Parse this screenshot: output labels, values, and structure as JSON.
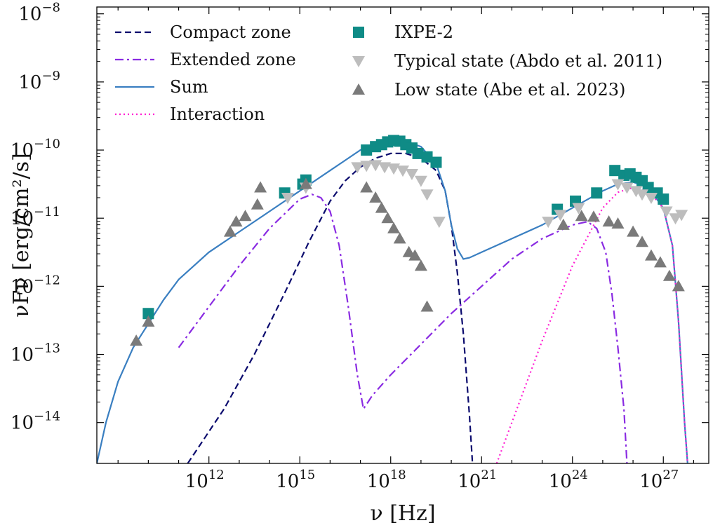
{
  "chart_data": {
    "type": "line",
    "title": "",
    "xlabel": "ν [Hz]",
    "ylabel": "νFν [erg/cm²/s]",
    "xscale": "log",
    "yscale": "log",
    "xlim_log10": [
      8.3,
      28.5
    ],
    "ylim_log10": [
      -14.6,
      -7.9
    ],
    "x_ticks": [
      {
        "exp": 12,
        "base": "10",
        "sup": "12"
      },
      {
        "exp": 15,
        "base": "10",
        "sup": "15"
      },
      {
        "exp": 18,
        "base": "10",
        "sup": "18"
      },
      {
        "exp": 21,
        "base": "10",
        "sup": "21"
      },
      {
        "exp": 24,
        "base": "10",
        "sup": "24"
      },
      {
        "exp": 27,
        "base": "10",
        "sup": "27"
      }
    ],
    "y_ticks": [
      {
        "exp": -8,
        "base": "10",
        "sup": "−8"
      },
      {
        "exp": -9,
        "base": "10",
        "sup": "−9"
      },
      {
        "exp": -10,
        "base": "10",
        "sup": "−10"
      },
      {
        "exp": -11,
        "base": "10",
        "sup": "−11"
      },
      {
        "exp": -12,
        "base": "10",
        "sup": "−12"
      },
      {
        "exp": -13,
        "base": "10",
        "sup": "−13"
      },
      {
        "exp": -14,
        "base": "10",
        "sup": "−14"
      }
    ],
    "legend_position": "top-left, two columns",
    "series": [
      {
        "name": "Compact zone",
        "kind": "line",
        "color": "#0b0b6e",
        "dash": "dashed",
        "points": [
          [
            11.3,
            -14.6
          ],
          [
            12.5,
            -13.8
          ],
          [
            13.5,
            -13.0
          ],
          [
            14.5,
            -12.1
          ],
          [
            15.3,
            -11.35
          ],
          [
            16.0,
            -10.75
          ],
          [
            16.5,
            -10.45
          ],
          [
            17.0,
            -10.25
          ],
          [
            17.5,
            -10.12
          ],
          [
            18.0,
            -10.05
          ],
          [
            18.5,
            -10.05
          ],
          [
            19.0,
            -10.12
          ],
          [
            19.5,
            -10.3
          ],
          [
            19.8,
            -10.6
          ],
          [
            20.0,
            -11.1
          ],
          [
            20.2,
            -11.8
          ],
          [
            20.4,
            -12.7
          ],
          [
            20.6,
            -13.9
          ],
          [
            20.7,
            -14.6
          ]
        ]
      },
      {
        "name": "Extended zone",
        "kind": "line",
        "color": "#8a2be2",
        "dash": "dashdot",
        "points": [
          [
            11.0,
            -12.9
          ],
          [
            12.0,
            -12.3
          ],
          [
            13.0,
            -11.7
          ],
          [
            14.0,
            -11.15
          ],
          [
            15.0,
            -10.72
          ],
          [
            15.4,
            -10.65
          ],
          [
            15.7,
            -10.7
          ],
          [
            16.0,
            -10.9
          ],
          [
            16.3,
            -11.4
          ],
          [
            16.6,
            -12.3
          ],
          [
            16.9,
            -13.3
          ],
          [
            17.1,
            -13.8
          ],
          [
            17.4,
            -13.6
          ],
          [
            18.0,
            -13.3
          ],
          [
            19.0,
            -12.85
          ],
          [
            20.0,
            -12.4
          ],
          [
            21.0,
            -12.0
          ],
          [
            22.0,
            -11.6
          ],
          [
            23.0,
            -11.3
          ],
          [
            24.0,
            -11.1
          ],
          [
            24.5,
            -11.05
          ],
          [
            24.8,
            -11.15
          ],
          [
            25.1,
            -11.5
          ],
          [
            25.3,
            -12.1
          ],
          [
            25.5,
            -12.9
          ],
          [
            25.7,
            -13.8
          ],
          [
            25.8,
            -14.6
          ]
        ]
      },
      {
        "name": "Sum",
        "kind": "line",
        "color": "#3a7fc1",
        "dash": "solid",
        "points": [
          [
            8.3,
            -14.6
          ],
          [
            8.6,
            -14.0
          ],
          [
            9.0,
            -13.4
          ],
          [
            9.5,
            -12.9
          ],
          [
            10.0,
            -12.55
          ],
          [
            10.5,
            -12.2
          ],
          [
            11.0,
            -11.9
          ],
          [
            12.0,
            -11.5
          ],
          [
            13.0,
            -11.2
          ],
          [
            14.0,
            -10.9
          ],
          [
            15.0,
            -10.6
          ],
          [
            15.5,
            -10.45
          ],
          [
            16.0,
            -10.3
          ],
          [
            16.5,
            -10.15
          ],
          [
            17.0,
            -10.0
          ],
          [
            17.5,
            -9.9
          ],
          [
            18.0,
            -9.85
          ],
          [
            18.5,
            -9.87
          ],
          [
            19.0,
            -9.95
          ],
          [
            19.5,
            -10.2
          ],
          [
            19.8,
            -10.6
          ],
          [
            20.0,
            -11.1
          ],
          [
            20.2,
            -11.45
          ],
          [
            20.4,
            -11.6
          ],
          [
            20.6,
            -11.58
          ],
          [
            21.0,
            -11.5
          ],
          [
            22.0,
            -11.3
          ],
          [
            23.0,
            -11.1
          ],
          [
            24.0,
            -10.85
          ],
          [
            25.0,
            -10.6
          ],
          [
            25.5,
            -10.5
          ],
          [
            26.0,
            -10.47
          ],
          [
            26.5,
            -10.55
          ],
          [
            27.0,
            -10.85
          ],
          [
            27.3,
            -11.4
          ],
          [
            27.5,
            -12.5
          ],
          [
            27.7,
            -14.0
          ],
          [
            27.8,
            -14.6
          ]
        ]
      },
      {
        "name": "Interaction",
        "kind": "line",
        "color": "#ff1fd2",
        "dash": "dotted",
        "points": [
          [
            21.5,
            -14.6
          ],
          [
            22.0,
            -14.0
          ],
          [
            23.0,
            -12.8
          ],
          [
            24.0,
            -11.7
          ],
          [
            25.0,
            -10.85
          ],
          [
            25.5,
            -10.62
          ],
          [
            26.0,
            -10.55
          ],
          [
            26.5,
            -10.6
          ],
          [
            27.0,
            -10.85
          ],
          [
            27.3,
            -11.4
          ],
          [
            27.5,
            -12.5
          ],
          [
            27.7,
            -14.0
          ],
          [
            27.8,
            -14.6
          ]
        ]
      },
      {
        "name": "IXPE-2",
        "kind": "square",
        "color": "#0f8b86",
        "points": [
          [
            10.0,
            -12.4
          ],
          [
            14.5,
            -10.63
          ],
          [
            15.1,
            -10.5
          ],
          [
            15.2,
            -10.44
          ],
          [
            17.2,
            -10.0
          ],
          [
            17.5,
            -9.95
          ],
          [
            17.7,
            -9.92
          ],
          [
            17.9,
            -9.88
          ],
          [
            18.1,
            -9.86
          ],
          [
            18.3,
            -9.87
          ],
          [
            18.5,
            -9.92
          ],
          [
            18.7,
            -9.97
          ],
          [
            18.9,
            -10.05
          ],
          [
            19.2,
            -10.1
          ],
          [
            19.5,
            -10.18
          ],
          [
            23.5,
            -10.87
          ],
          [
            24.1,
            -10.75
          ],
          [
            24.8,
            -10.63
          ],
          [
            25.4,
            -10.3
          ],
          [
            25.7,
            -10.37
          ],
          [
            25.9,
            -10.35
          ],
          [
            26.1,
            -10.4
          ],
          [
            26.3,
            -10.45
          ],
          [
            26.5,
            -10.55
          ],
          [
            26.8,
            -10.63
          ],
          [
            27.0,
            -10.72
          ]
        ]
      },
      {
        "name": "Typical state (Abdo et al. 2011)",
        "kind": "tri-down",
        "color": "#bdbdbd",
        "points": [
          [
            14.6,
            -10.7
          ],
          [
            15.2,
            -10.55
          ],
          [
            16.9,
            -10.25
          ],
          [
            17.2,
            -10.23
          ],
          [
            17.5,
            -10.22
          ],
          [
            17.8,
            -10.25
          ],
          [
            18.1,
            -10.27
          ],
          [
            18.4,
            -10.3
          ],
          [
            18.7,
            -10.35
          ],
          [
            19.0,
            -10.45
          ],
          [
            19.2,
            -10.65
          ],
          [
            19.6,
            -11.05
          ],
          [
            23.2,
            -11.05
          ],
          [
            23.6,
            -10.95
          ],
          [
            24.2,
            -10.85
          ],
          [
            25.5,
            -10.5
          ],
          [
            25.8,
            -10.55
          ],
          [
            26.1,
            -10.6
          ],
          [
            26.3,
            -10.65
          ],
          [
            26.6,
            -10.7
          ],
          [
            27.1,
            -10.9
          ],
          [
            27.4,
            -11.0
          ],
          [
            27.6,
            -10.95
          ]
        ]
      },
      {
        "name": "Low state (Abe et al. 2023)",
        "kind": "tri-up",
        "color": "#7a7a7a",
        "points": [
          [
            9.6,
            -12.8
          ],
          [
            10.0,
            -12.52
          ],
          [
            12.7,
            -11.2
          ],
          [
            12.9,
            -11.05
          ],
          [
            13.2,
            -10.97
          ],
          [
            13.6,
            -10.8
          ],
          [
            13.7,
            -10.55
          ],
          [
            15.2,
            -10.5
          ],
          [
            17.2,
            -10.55
          ],
          [
            17.5,
            -10.7
          ],
          [
            17.7,
            -10.85
          ],
          [
            17.9,
            -11.0
          ],
          [
            18.1,
            -11.15
          ],
          [
            18.3,
            -11.3
          ],
          [
            18.6,
            -11.5
          ],
          [
            18.8,
            -11.55
          ],
          [
            19.0,
            -11.7
          ],
          [
            19.2,
            -12.3
          ],
          [
            23.7,
            -11.1
          ],
          [
            24.3,
            -10.97
          ],
          [
            24.7,
            -10.98
          ],
          [
            25.2,
            -11.05
          ],
          [
            25.5,
            -11.08
          ],
          [
            26.0,
            -11.2
          ],
          [
            26.3,
            -11.35
          ],
          [
            26.6,
            -11.55
          ],
          [
            26.9,
            -11.65
          ],
          [
            27.2,
            -11.85
          ],
          [
            27.5,
            -12.0
          ]
        ]
      }
    ]
  }
}
